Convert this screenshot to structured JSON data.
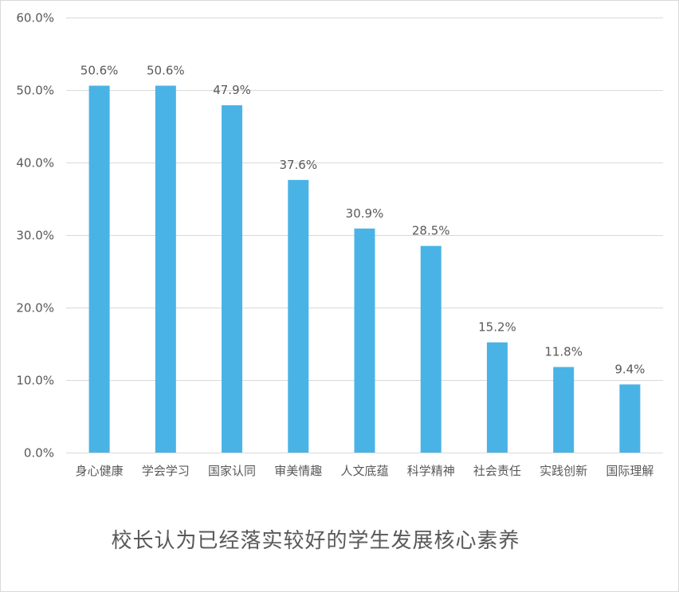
{
  "chart_data": {
    "type": "bar",
    "title": "校长认为已经落实较好的学生发展核心素养",
    "xlabel": "",
    "ylabel": "",
    "categories": [
      "身心健康",
      "学会学习",
      "国家认同",
      "审美情趣",
      "人文底蕴",
      "科学精神",
      "社会责任",
      "实践创新",
      "国际理解"
    ],
    "values": [
      50.6,
      50.6,
      47.9,
      37.6,
      30.9,
      28.5,
      15.2,
      11.8,
      9.4
    ],
    "value_labels": [
      "50.6%",
      "50.6%",
      "47.9%",
      "37.6%",
      "30.9%",
      "28.5%",
      "15.2%",
      "11.8%",
      "9.4%"
    ],
    "ylim": [
      0,
      60
    ],
    "yticks": [
      0,
      10,
      20,
      30,
      40,
      50,
      60
    ],
    "ytick_labels": [
      "0.0%",
      "10.0%",
      "20.0%",
      "30.0%",
      "40.0%",
      "50.0%",
      "60.0%"
    ],
    "grid": true,
    "legend": "none",
    "bar_color": "#4ab3e6",
    "grid_color": "#d9d9d9",
    "text_color": "#595959"
  }
}
